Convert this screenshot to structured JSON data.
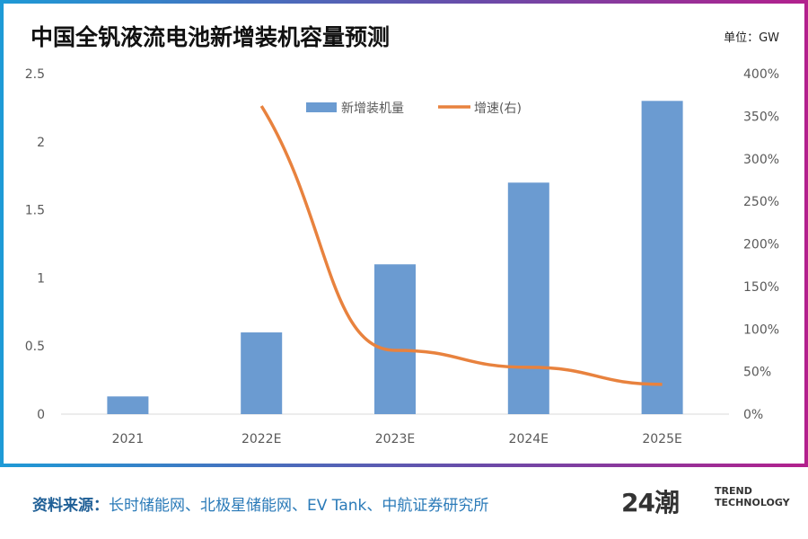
{
  "title": "中国全钒液流电池新增装机容量预测",
  "unit": "单位：GW",
  "source_label": "资料来源：",
  "source_text": "长时储能网、北极星储能网、EV Tank、中航证券研究所",
  "logo": {
    "mark": "24潮",
    "line1": "TREND",
    "line2": "TECHNOLOGY"
  },
  "colors": {
    "bar": "#6b9bd1",
    "line": "#e8823e"
  },
  "chart_data": {
    "type": "bar",
    "title": "中国全钒液流电池新增装机容量预测",
    "categories": [
      "2021",
      "2022E",
      "2023E",
      "2024E",
      "2025E"
    ],
    "series": [
      {
        "name": "新增装机量",
        "type": "bar",
        "axis": "left",
        "values": [
          0.13,
          0.6,
          1.1,
          1.7,
          2.3
        ]
      },
      {
        "name": "增速(右)",
        "type": "line",
        "axis": "right",
        "values": [
          null,
          362,
          75,
          55,
          35
        ]
      }
    ],
    "ylim": [
      0,
      2.5
    ],
    "yticks": [
      "0",
      "0.5",
      "1",
      "1.5",
      "2",
      "2.5"
    ],
    "y2lim": [
      0,
      400
    ],
    "y2ticks": [
      "0%",
      "50%",
      "100%",
      "150%",
      "200%",
      "250%",
      "300%",
      "350%",
      "400%"
    ],
    "legend": "top-center",
    "grid": false
  }
}
